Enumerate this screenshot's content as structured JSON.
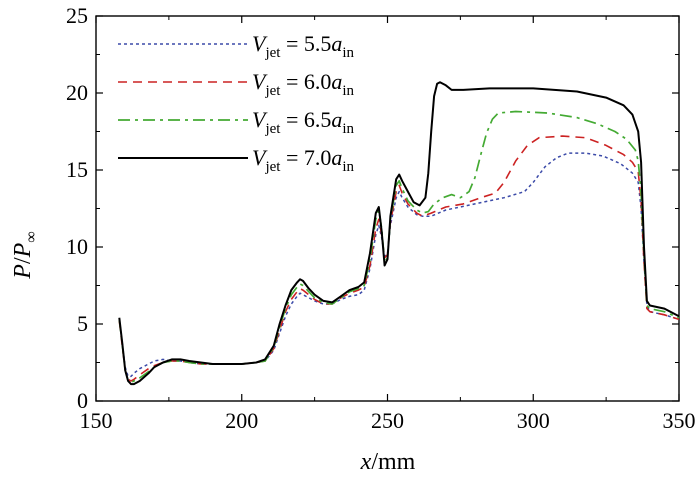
{
  "chart_data": {
    "type": "line",
    "title": "",
    "xlabel": {
      "var": "x",
      "unit": "/mm"
    },
    "ylabel": {
      "num": "P",
      "sep": "/",
      "den": "P",
      "den_sub": "∞"
    },
    "xlim": [
      150,
      350
    ],
    "ylim": [
      0,
      25
    ],
    "xticks": [
      150,
      200,
      250,
      300,
      350
    ],
    "yticks": [
      0,
      5,
      10,
      15,
      20,
      25
    ],
    "grid": false,
    "legend_position": "top-left",
    "series": [
      {
        "name": "V_jet = 5.5a_in",
        "legend": {
          "var": "V",
          "sub": "jet",
          "eq": " = 5.5",
          "coef": "a",
          "coef_sub": "in"
        },
        "color": "#3b4aa8",
        "dash": "dotted",
        "points": [
          [
            158,
            5.3
          ],
          [
            159,
            3.8
          ],
          [
            160,
            2.2
          ],
          [
            161,
            1.6
          ],
          [
            162,
            1.6
          ],
          [
            163,
            1.8
          ],
          [
            165,
            2.1
          ],
          [
            168,
            2.4
          ],
          [
            170,
            2.6
          ],
          [
            173,
            2.7
          ],
          [
            176,
            2.6
          ],
          [
            179,
            2.6
          ],
          [
            182,
            2.5
          ],
          [
            186,
            2.4
          ],
          [
            190,
            2.4
          ],
          [
            195,
            2.4
          ],
          [
            200,
            2.4
          ],
          [
            205,
            2.5
          ],
          [
            208,
            2.6
          ],
          [
            211,
            3.3
          ],
          [
            213,
            4.4
          ],
          [
            215,
            5.5
          ],
          [
            217,
            6.3
          ],
          [
            219,
            6.8
          ],
          [
            220,
            7.0
          ],
          [
            221,
            6.9
          ],
          [
            223,
            6.7
          ],
          [
            225,
            6.5
          ],
          [
            228,
            6.3
          ],
          [
            231,
            6.3
          ],
          [
            234,
            6.6
          ],
          [
            237,
            6.8
          ],
          [
            240,
            6.9
          ],
          [
            242,
            7.2
          ],
          [
            244,
            8.6
          ],
          [
            246,
            10.8
          ],
          [
            247,
            11.4
          ],
          [
            248,
            10.6
          ],
          [
            249,
            9.4
          ],
          [
            250,
            9.6
          ],
          [
            251,
            11.4
          ],
          [
            253,
            13.2
          ],
          [
            254,
            13.6
          ],
          [
            255,
            13.2
          ],
          [
            257,
            12.6
          ],
          [
            260,
            12.1
          ],
          [
            262,
            12.0
          ],
          [
            265,
            12.0
          ],
          [
            270,
            12.4
          ],
          [
            280,
            12.8
          ],
          [
            290,
            13.2
          ],
          [
            297,
            13.6
          ],
          [
            300,
            14.2
          ],
          [
            304,
            15.2
          ],
          [
            308,
            15.8
          ],
          [
            312,
            16.1
          ],
          [
            318,
            16.1
          ],
          [
            324,
            15.9
          ],
          [
            330,
            15.4
          ],
          [
            334,
            14.8
          ],
          [
            336,
            14.2
          ],
          [
            337,
            12.5
          ],
          [
            338,
            9.0
          ],
          [
            339,
            6.2
          ],
          [
            340,
            5.8
          ],
          [
            345,
            5.6
          ],
          [
            350,
            5.3
          ]
        ]
      },
      {
        "name": "V_jet = 6.0a_in",
        "legend": {
          "var": "V",
          "sub": "jet",
          "eq": " = 6.0",
          "coef": "a",
          "coef_sub": "in"
        },
        "color": "#cc2222",
        "dash": "dashed",
        "points": [
          [
            158,
            5.2
          ],
          [
            159,
            3.6
          ],
          [
            160,
            2.0
          ],
          [
            161,
            1.4
          ],
          [
            162,
            1.3
          ],
          [
            163,
            1.4
          ],
          [
            165,
            1.7
          ],
          [
            168,
            2.1
          ],
          [
            170,
            2.3
          ],
          [
            173,
            2.5
          ],
          [
            176,
            2.6
          ],
          [
            179,
            2.6
          ],
          [
            182,
            2.5
          ],
          [
            186,
            2.4
          ],
          [
            190,
            2.4
          ],
          [
            195,
            2.4
          ],
          [
            200,
            2.4
          ],
          [
            205,
            2.5
          ],
          [
            208,
            2.6
          ],
          [
            211,
            3.4
          ],
          [
            213,
            4.6
          ],
          [
            215,
            5.8
          ],
          [
            217,
            6.6
          ],
          [
            219,
            7.1
          ],
          [
            220,
            7.3
          ],
          [
            221,
            7.2
          ],
          [
            223,
            6.9
          ],
          [
            225,
            6.6
          ],
          [
            228,
            6.3
          ],
          [
            231,
            6.3
          ],
          [
            234,
            6.7
          ],
          [
            237,
            7.0
          ],
          [
            240,
            7.2
          ],
          [
            242,
            7.4
          ],
          [
            244,
            8.8
          ],
          [
            246,
            11.2
          ],
          [
            247,
            11.8
          ],
          [
            248,
            10.8
          ],
          [
            249,
            9.3
          ],
          [
            250,
            9.5
          ],
          [
            251,
            11.6
          ],
          [
            253,
            13.6
          ],
          [
            254,
            14.0
          ],
          [
            255,
            13.5
          ],
          [
            257,
            12.8
          ],
          [
            260,
            12.2
          ],
          [
            262,
            12.0
          ],
          [
            265,
            12.2
          ],
          [
            270,
            12.6
          ],
          [
            276,
            12.8
          ],
          [
            282,
            13.2
          ],
          [
            287,
            13.5
          ],
          [
            290,
            14.2
          ],
          [
            294,
            15.6
          ],
          [
            298,
            16.6
          ],
          [
            302,
            17.1
          ],
          [
            310,
            17.2
          ],
          [
            318,
            17.1
          ],
          [
            325,
            16.6
          ],
          [
            331,
            16.0
          ],
          [
            334,
            15.5
          ],
          [
            336,
            14.9
          ],
          [
            337,
            13.0
          ],
          [
            338,
            9.0
          ],
          [
            339,
            6.0
          ],
          [
            340,
            5.8
          ],
          [
            345,
            5.6
          ],
          [
            350,
            5.3
          ]
        ]
      },
      {
        "name": "V_jet = 6.5a_in",
        "legend": {
          "var": "V",
          "sub": "jet",
          "eq": " = 6.5",
          "coef": "a",
          "coef_sub": "in"
        },
        "color": "#44aa33",
        "dash": "dashdot",
        "points": [
          [
            158,
            5.3
          ],
          [
            159,
            3.7
          ],
          [
            160,
            2.0
          ],
          [
            161,
            1.3
          ],
          [
            162,
            1.2
          ],
          [
            163,
            1.3
          ],
          [
            165,
            1.5
          ],
          [
            168,
            1.9
          ],
          [
            170,
            2.2
          ],
          [
            173,
            2.5
          ],
          [
            176,
            2.6
          ],
          [
            179,
            2.6
          ],
          [
            182,
            2.5
          ],
          [
            186,
            2.4
          ],
          [
            190,
            2.4
          ],
          [
            195,
            2.4
          ],
          [
            200,
            2.4
          ],
          [
            205,
            2.5
          ],
          [
            208,
            2.6
          ],
          [
            211,
            3.5
          ],
          [
            213,
            4.8
          ],
          [
            215,
            6.0
          ],
          [
            217,
            6.9
          ],
          [
            219,
            7.4
          ],
          [
            220,
            7.6
          ],
          [
            221,
            7.5
          ],
          [
            223,
            7.1
          ],
          [
            225,
            6.7
          ],
          [
            228,
            6.4
          ],
          [
            231,
            6.3
          ],
          [
            234,
            6.7
          ],
          [
            237,
            7.1
          ],
          [
            240,
            7.3
          ],
          [
            242,
            7.5
          ],
          [
            244,
            9.2
          ],
          [
            246,
            11.8
          ],
          [
            247,
            12.4
          ],
          [
            248,
            11.2
          ],
          [
            249,
            9.0
          ],
          [
            250,
            9.3
          ],
          [
            251,
            11.8
          ],
          [
            253,
            14.0
          ],
          [
            254,
            14.3
          ],
          [
            255,
            13.8
          ],
          [
            257,
            13.0
          ],
          [
            260,
            12.4
          ],
          [
            262,
            12.2
          ],
          [
            264,
            12.3
          ],
          [
            266,
            12.8
          ],
          [
            269,
            13.2
          ],
          [
            272,
            13.4
          ],
          [
            275,
            13.2
          ],
          [
            278,
            13.6
          ],
          [
            280,
            14.5
          ],
          [
            282,
            16.0
          ],
          [
            284,
            17.4
          ],
          [
            286,
            18.3
          ],
          [
            288,
            18.7
          ],
          [
            294,
            18.8
          ],
          [
            305,
            18.7
          ],
          [
            315,
            18.4
          ],
          [
            322,
            18.0
          ],
          [
            328,
            17.5
          ],
          [
            332,
            17.0
          ],
          [
            335,
            16.3
          ],
          [
            336,
            15.6
          ],
          [
            337,
            13.5
          ],
          [
            338,
            9.5
          ],
          [
            339,
            6.2
          ],
          [
            340,
            6.0
          ],
          [
            345,
            5.8
          ],
          [
            350,
            5.4
          ]
        ]
      },
      {
        "name": "V_jet = 7.0a_in",
        "legend": {
          "var": "V",
          "sub": "jet",
          "eq": " = 7.0",
          "coef": "a",
          "coef_sub": "in"
        },
        "color": "#000000",
        "dash": "solid",
        "points": [
          [
            158,
            5.4
          ],
          [
            159,
            3.8
          ],
          [
            160,
            2.0
          ],
          [
            161,
            1.3
          ],
          [
            162,
            1.1
          ],
          [
            163,
            1.1
          ],
          [
            165,
            1.3
          ],
          [
            168,
            1.8
          ],
          [
            170,
            2.2
          ],
          [
            173,
            2.5
          ],
          [
            176,
            2.7
          ],
          [
            179,
            2.7
          ],
          [
            182,
            2.6
          ],
          [
            186,
            2.5
          ],
          [
            190,
            2.4
          ],
          [
            195,
            2.4
          ],
          [
            200,
            2.4
          ],
          [
            205,
            2.5
          ],
          [
            208,
            2.7
          ],
          [
            211,
            3.6
          ],
          [
            213,
            5.0
          ],
          [
            215,
            6.2
          ],
          [
            217,
            7.2
          ],
          [
            219,
            7.7
          ],
          [
            220,
            7.9
          ],
          [
            221,
            7.8
          ],
          [
            223,
            7.3
          ],
          [
            225,
            6.9
          ],
          [
            228,
            6.5
          ],
          [
            231,
            6.4
          ],
          [
            234,
            6.8
          ],
          [
            237,
            7.2
          ],
          [
            240,
            7.4
          ],
          [
            242,
            7.7
          ],
          [
            244,
            9.6
          ],
          [
            246,
            12.2
          ],
          [
            247,
            12.6
          ],
          [
            248,
            11.0
          ],
          [
            249,
            8.8
          ],
          [
            250,
            9.2
          ],
          [
            251,
            12.0
          ],
          [
            253,
            14.4
          ],
          [
            254,
            14.7
          ],
          [
            255,
            14.3
          ],
          [
            257,
            13.6
          ],
          [
            259,
            12.9
          ],
          [
            261,
            12.7
          ],
          [
            263,
            13.2
          ],
          [
            264,
            14.8
          ],
          [
            265,
            17.5
          ],
          [
            266,
            19.8
          ],
          [
            267,
            20.6
          ],
          [
            268,
            20.7
          ],
          [
            270,
            20.5
          ],
          [
            272,
            20.2
          ],
          [
            276,
            20.2
          ],
          [
            285,
            20.3
          ],
          [
            300,
            20.3
          ],
          [
            315,
            20.1
          ],
          [
            325,
            19.7
          ],
          [
            331,
            19.2
          ],
          [
            334,
            18.6
          ],
          [
            336,
            17.5
          ],
          [
            337,
            15.5
          ],
          [
            338,
            10.0
          ],
          [
            339,
            6.5
          ],
          [
            340,
            6.2
          ],
          [
            345,
            6.0
          ],
          [
            350,
            5.5
          ]
        ]
      }
    ]
  }
}
